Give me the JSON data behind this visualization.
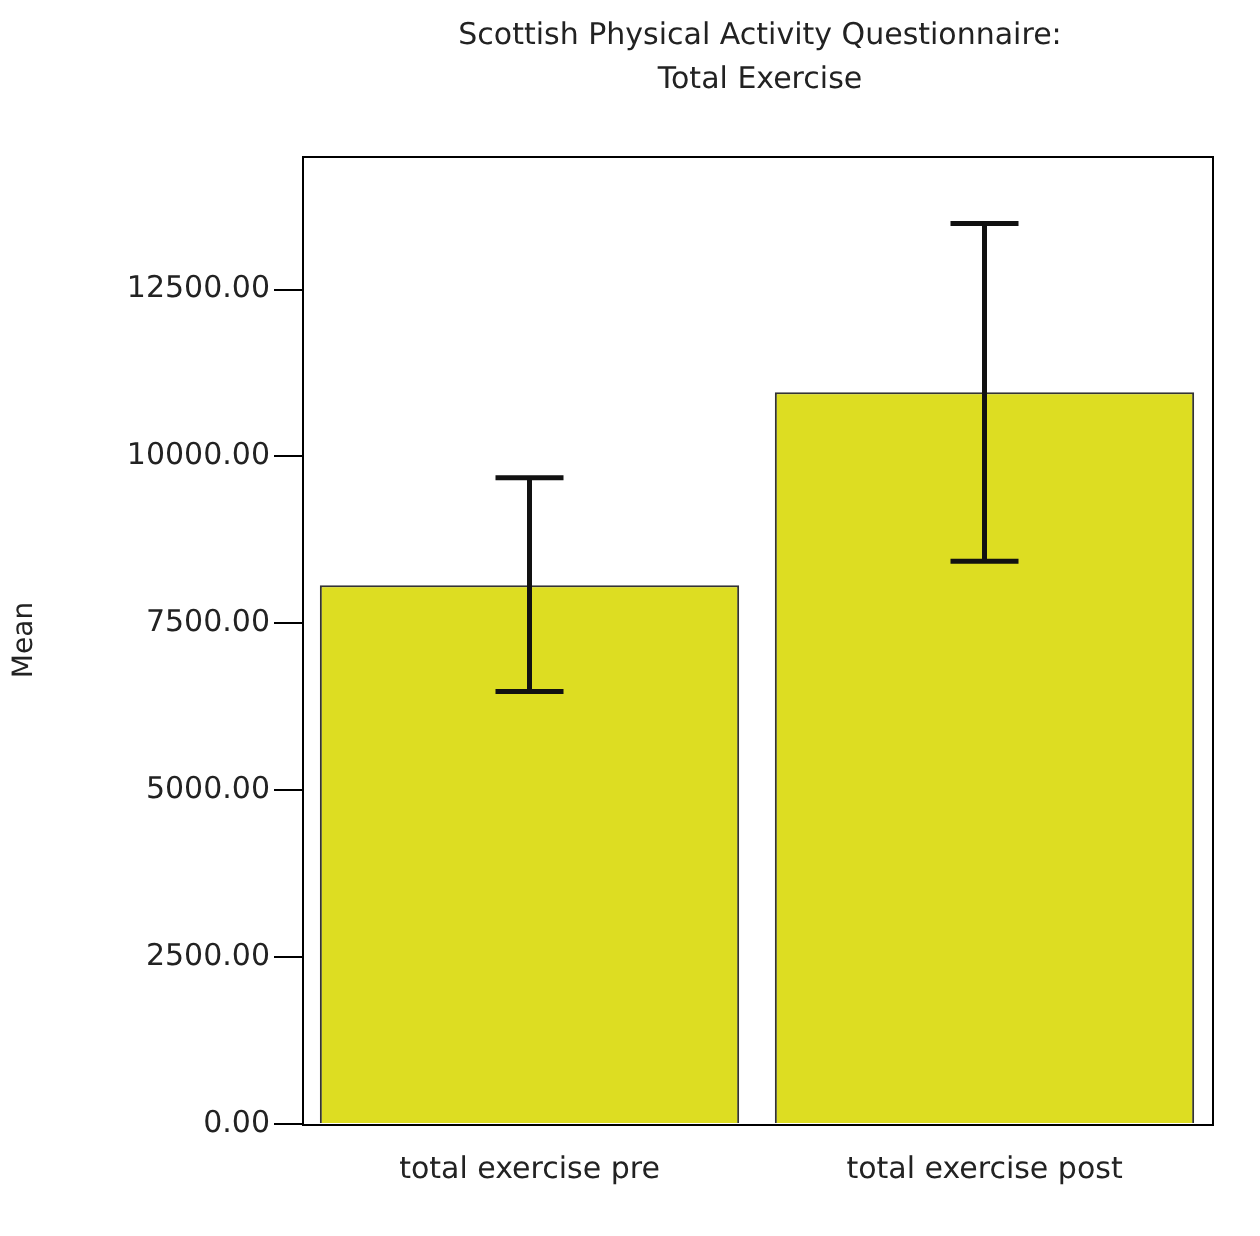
{
  "chart_data": {
    "type": "bar",
    "title": "Scottish Physical Activity Questionnaire: Total Exercise",
    "ylabel": "Mean",
    "categories": [
      "total exercise pre",
      "total exercise post"
    ],
    "values": [
      8070,
      10960
    ],
    "color": "#dddd22",
    "errors": [
      [
        6480,
        9680
      ],
      [
        8430,
        13490
      ]
    ],
    "ylim": [
      0,
      14500
    ],
    "yticks": [
      {
        "value": 0,
        "label": "0.00"
      },
      {
        "value": 2500,
        "label": "2500.00"
      },
      {
        "value": 5000,
        "label": "5000.00"
      },
      {
        "value": 7500,
        "label": "7500.00"
      },
      {
        "value": 10000,
        "label": "10000.00"
      },
      {
        "value": 12500,
        "label": "12500.00"
      }
    ],
    "grid": false,
    "legend": false
  }
}
